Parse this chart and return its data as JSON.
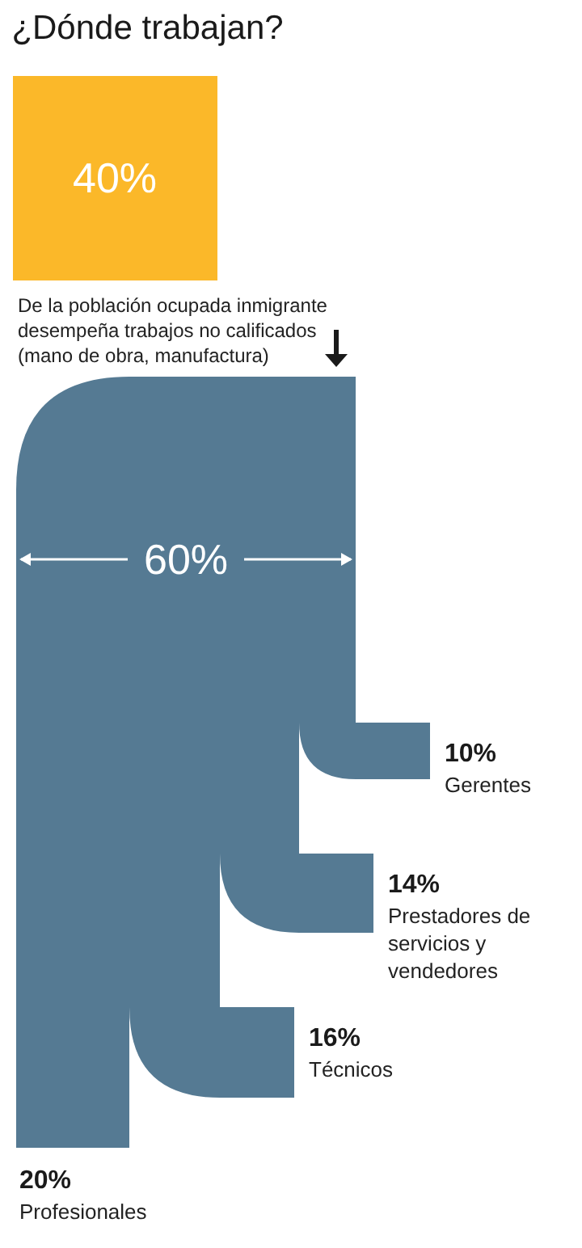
{
  "chart_data": {
    "type": "other",
    "title": "¿Dónde trabajan?",
    "categories": [
      "De la población ocupada inmigrante desempeña trabajos no calificados (mano de obra, manufactura)",
      "Gerentes",
      "Prestadores de servicios y vendedores",
      "Técnicos",
      "Profesionales"
    ],
    "values": [
      40,
      10,
      14,
      16,
      20
    ],
    "value_labels": [
      "40%",
      "10%",
      "14%",
      "16%",
      "20%"
    ],
    "colors": [
      "#fbb829",
      "#557a93",
      "#557a93",
      "#557a93",
      "#557a93"
    ],
    "annotations": [
      "60%"
    ]
  }
}
